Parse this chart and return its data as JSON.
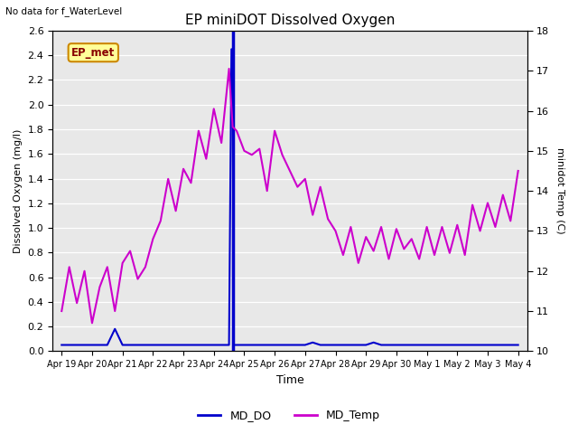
{
  "title": "EP miniDOT Dissolved Oxygen",
  "top_left_text": "No data for f_WaterLevel",
  "ylabel_left": "Dissolved Oxygen (mg/l)",
  "ylabel_right": "minidot Temp (C)",
  "xlabel": "Time",
  "ylim_left": [
    0.0,
    2.6
  ],
  "ylim_right": [
    10.0,
    18.0
  ],
  "fig_facecolor": "#ffffff",
  "plot_facecolor": "#e8e8e8",
  "md_do_color": "#0000cc",
  "md_temp_color": "#cc00cc",
  "legend_do_label": "MD_DO",
  "legend_temp_label": "MD_Temp",
  "ep_met_label": "EP_met",
  "ep_met_bg": "#ffff99",
  "ep_met_border": "#cc8800",
  "ep_met_text_color": "#880000",
  "x_ticks": [
    0,
    1,
    2,
    3,
    4,
    5,
    6,
    7,
    8,
    9,
    10,
    11,
    12,
    13,
    14,
    15
  ],
  "x_tick_labels": [
    "Apr 19",
    "Apr 20",
    "Apr 21",
    "Apr 22",
    "Apr 23",
    "Apr 24",
    "Apr 25",
    "Apr 26",
    "Apr 27",
    "Apr 28",
    "Apr 29",
    "Apr 30",
    "May 1",
    "May 2",
    "May 3",
    "May 4"
  ],
  "xlim": [
    -0.3,
    15.3
  ],
  "yticks_left": [
    0.0,
    0.2,
    0.4,
    0.6,
    0.8,
    1.0,
    1.2,
    1.4,
    1.6,
    1.8,
    2.0,
    2.2,
    2.4,
    2.6
  ],
  "yticks_right": [
    10.0,
    11.0,
    12.0,
    13.0,
    14.0,
    15.0,
    16.0,
    17.0,
    18.0
  ],
  "vline_x": 5.62,
  "md_temp_x": [
    0.0,
    0.25,
    0.5,
    0.75,
    1.0,
    1.25,
    1.5,
    1.75,
    2.0,
    2.25,
    2.5,
    2.75,
    3.0,
    3.25,
    3.5,
    3.75,
    4.0,
    4.25,
    4.5,
    4.75,
    5.0,
    5.25,
    5.5,
    5.62,
    5.75,
    6.0,
    6.25,
    6.5,
    6.75,
    7.0,
    7.25,
    7.5,
    7.75,
    8.0,
    8.25,
    8.5,
    8.75,
    9.0,
    9.25,
    9.5,
    9.75,
    10.0,
    10.25,
    10.5,
    10.75,
    11.0,
    11.25,
    11.5,
    11.75,
    12.0,
    12.25,
    12.5,
    12.75,
    13.0,
    13.25,
    13.5,
    13.75,
    14.0,
    14.25,
    14.5,
    14.75,
    15.0
  ],
  "md_temp_y": [
    11.0,
    12.1,
    11.2,
    12.0,
    10.7,
    11.6,
    12.1,
    11.0,
    12.2,
    12.5,
    11.8,
    12.1,
    12.8,
    13.25,
    14.3,
    13.5,
    14.55,
    14.2,
    15.5,
    14.8,
    16.05,
    15.2,
    17.05,
    15.6,
    15.5,
    15.0,
    14.9,
    15.05,
    14.0,
    15.5,
    14.9,
    14.5,
    14.1,
    14.3,
    13.4,
    14.1,
    13.3,
    13.0,
    12.4,
    13.1,
    12.2,
    12.85,
    12.5,
    13.1,
    12.3,
    13.05,
    12.55,
    12.8,
    12.3,
    13.1,
    12.4,
    13.1,
    12.45,
    13.15,
    12.4,
    13.65,
    13.0,
    13.7,
    13.1,
    13.9,
    13.25,
    14.5
  ],
  "md_do_x": [
    0.0,
    0.5,
    1.0,
    1.5,
    1.75,
    2.0,
    2.5,
    3.0,
    3.5,
    4.0,
    4.5,
    5.0,
    5.5,
    5.58,
    5.62,
    5.65,
    5.7,
    6.0,
    6.5,
    7.0,
    7.5,
    8.0,
    8.25,
    8.5,
    9.0,
    9.5,
    10.0,
    10.25,
    10.5,
    11.0,
    11.5,
    12.0,
    12.5,
    13.0,
    13.5,
    14.0,
    14.5,
    15.0
  ],
  "md_do_y": [
    0.05,
    0.05,
    0.05,
    0.05,
    0.18,
    0.05,
    0.05,
    0.05,
    0.05,
    0.05,
    0.05,
    0.05,
    0.05,
    2.45,
    2.45,
    0.05,
    0.05,
    0.05,
    0.05,
    0.05,
    0.05,
    0.05,
    0.07,
    0.05,
    0.05,
    0.05,
    0.05,
    0.07,
    0.05,
    0.05,
    0.05,
    0.05,
    0.05,
    0.05,
    0.05,
    0.05,
    0.05,
    0.05
  ]
}
